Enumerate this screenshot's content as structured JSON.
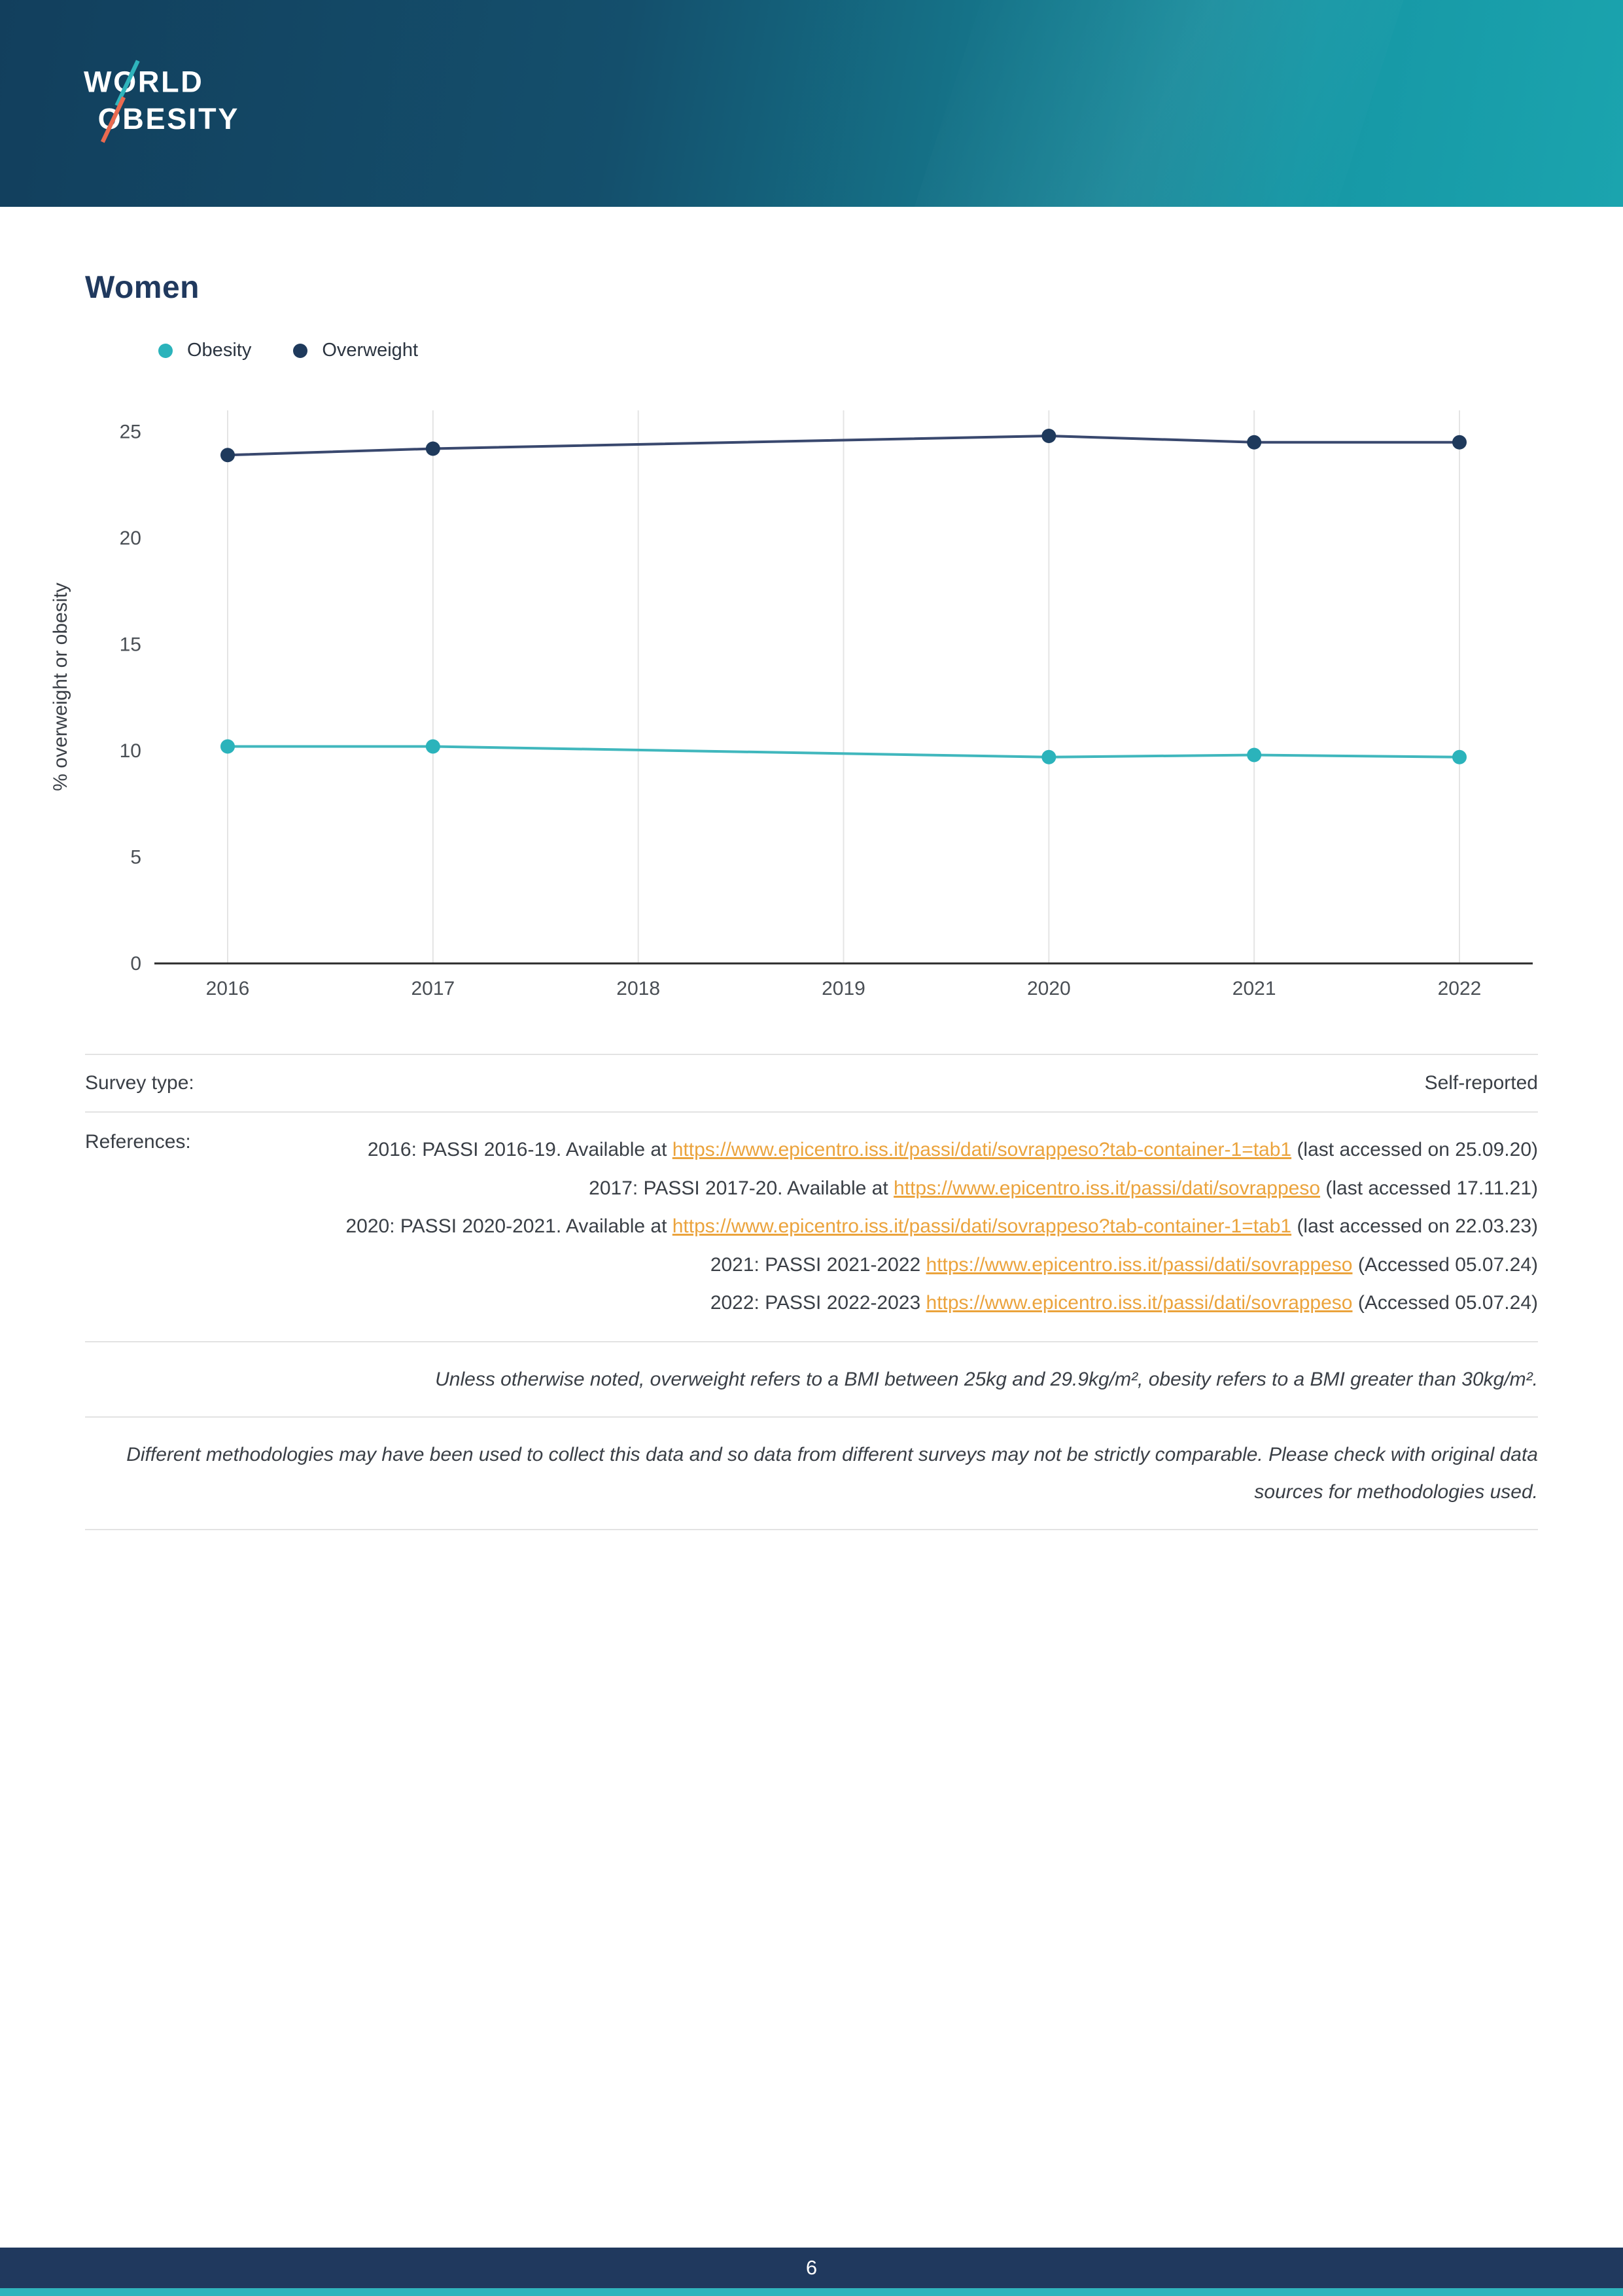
{
  "page": {
    "title": "Women",
    "page_number": "6"
  },
  "logo": {
    "line1": "WORLD",
    "line2": "OBESITY"
  },
  "legend": [
    {
      "label": "Obesity",
      "color": "#2bb3bb"
    },
    {
      "label": "Overweight",
      "color": "#1f3a5c"
    }
  ],
  "chart_data": {
    "type": "line",
    "title": "Women",
    "ylabel": "% overweight or obesity",
    "xlabel": "",
    "x": [
      2016,
      2017,
      2020,
      2021,
      2022
    ],
    "series": [
      {
        "name": "Obesity",
        "line_color": "#40b7bd",
        "point_color": "#2bb3bb",
        "values": [
          10.2,
          10.2,
          9.7,
          9.8,
          9.7
        ]
      },
      {
        "name": "Overweight",
        "line_color": "#39486e",
        "point_color": "#1f3a5c",
        "values": [
          23.9,
          24.2,
          24.8,
          24.5,
          24.5
        ]
      }
    ],
    "xticks": [
      2016,
      2017,
      2018,
      2019,
      2020,
      2021,
      2022
    ],
    "yticks": [
      0,
      5,
      10,
      15,
      20,
      25
    ],
    "ylim": [
      0,
      26
    ],
    "grid": "vertical",
    "legend_position": "top-left"
  },
  "survey": {
    "label": "Survey type:",
    "value": "Self-reported"
  },
  "references": {
    "label": "References:",
    "items": [
      {
        "pre": "2016: PASSI 2016-19. Available at ",
        "link": "https://www.epicentro.iss.it/passi/dati/sovrappeso?tab-container-1=tab1",
        "post": " (last accessed on 25.09.20)"
      },
      {
        "pre": "2017: PASSI 2017-20. Available at ",
        "link": "https://www.epicentro.iss.it/passi/dati/sovrappeso",
        "post": " (last accessed 17.11.21)"
      },
      {
        "pre": "2020: PASSI 2020-2021. Available at ",
        "link": "https://www.epicentro.iss.it/passi/dati/sovrappeso?tab-container-1=tab1",
        "post": " (last accessed on 22.03.23)"
      },
      {
        "pre": "2021: PASSI 2021-2022 ",
        "link": "https://www.epicentro.iss.it/passi/dati/sovrappeso",
        "post": " (Accessed 05.07.24)"
      },
      {
        "pre": "2022: PASSI 2022-2023 ",
        "link": "https://www.epicentro.iss.it/passi/dati/sovrappeso",
        "post": " (Accessed 05.07.24)"
      }
    ]
  },
  "notes": [
    "Unless otherwise noted, overweight refers to a BMI between 25kg and 29.9kg/m², obesity refers to a BMI greater than 30kg/m².",
    "Different methodologies may have been used to collect this data and so data from different surveys may not be strictly comparable. Please check with original data sources for methodologies used."
  ]
}
